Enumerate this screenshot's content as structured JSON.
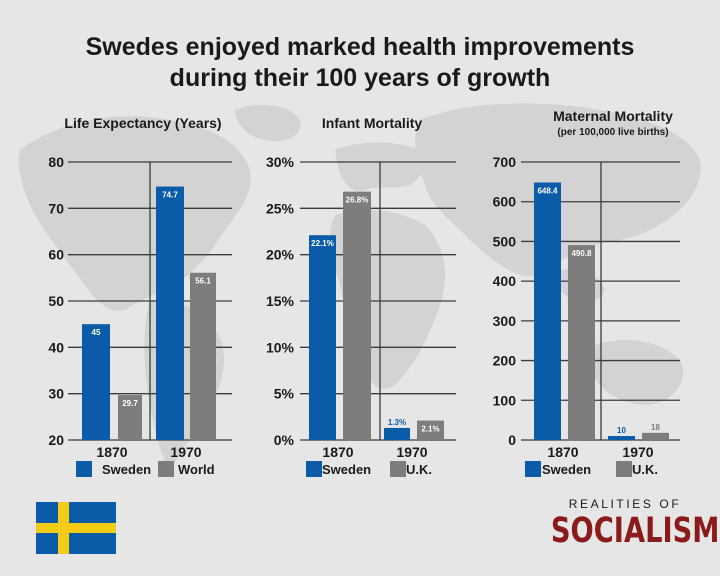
{
  "title_line1": "Swedes enjoyed marked health improvements",
  "title_line2": "during their 100 years of growth",
  "colors": {
    "sweden": "#0a5ca8",
    "other": "#7d7d7d",
    "grid": "#3c3c3c",
    "brand": "#8b1a1a",
    "flag_blue": "#0a5ca8",
    "flag_yellow": "#f5cc16"
  },
  "chart_data": [
    {
      "type": "bar",
      "title": "Life Expectancy (Years)",
      "subtitle": "",
      "categories": [
        "1870",
        "1970"
      ],
      "series": [
        {
          "name": "Sweden",
          "values": [
            45,
            74.7
          ],
          "labels": [
            "45",
            "74.7"
          ]
        },
        {
          "name": "World",
          "values": [
            29.7,
            56.1
          ],
          "labels": [
            "29.7",
            "56.1"
          ]
        }
      ],
      "ylim": [
        20,
        80
      ],
      "yticks": [
        20,
        30,
        40,
        50,
        60,
        70,
        80
      ],
      "ytick_labels": [
        "20",
        "30",
        "40",
        "50",
        "60",
        "70",
        "80"
      ],
      "grid": true,
      "legend": "bottom"
    },
    {
      "type": "bar",
      "title": "Infant Mortality",
      "subtitle": "",
      "categories": [
        "1870",
        "1970"
      ],
      "series": [
        {
          "name": "Sweden",
          "values": [
            22.1,
            1.3
          ],
          "labels": [
            "22.1%",
            "1.3%"
          ]
        },
        {
          "name": "U.K.",
          "values": [
            26.8,
            2.1
          ],
          "labels": [
            "26.8%",
            "2.1%"
          ]
        }
      ],
      "ylim": [
        0,
        30
      ],
      "yticks": [
        0,
        5,
        10,
        15,
        20,
        25,
        30
      ],
      "ytick_labels": [
        "0%",
        "5%",
        "10%",
        "15%",
        "20%",
        "25%",
        "30%"
      ],
      "grid": true,
      "legend": "bottom"
    },
    {
      "type": "bar",
      "title": "Maternal Mortality",
      "subtitle": "(per 100,000 live births)",
      "categories": [
        "1870",
        "1970"
      ],
      "series": [
        {
          "name": "Sweden",
          "values": [
            648.4,
            10
          ],
          "labels": [
            "648.4",
            "10"
          ]
        },
        {
          "name": "U.K.",
          "values": [
            490.8,
            18
          ],
          "labels": [
            "490.8",
            "18"
          ]
        }
      ],
      "ylim": [
        0,
        700
      ],
      "yticks": [
        0,
        100,
        200,
        300,
        400,
        500,
        600,
        700
      ],
      "ytick_labels": [
        "0",
        "100",
        "200",
        "300",
        "400",
        "500",
        "600",
        "700"
      ],
      "grid": true,
      "legend": "bottom"
    }
  ],
  "brand": {
    "top": "REALITIES OF",
    "bottom": "SOCIALISM"
  }
}
